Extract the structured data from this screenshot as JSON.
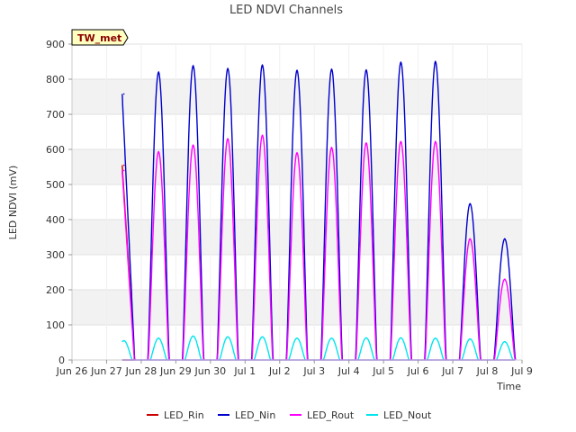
{
  "chart_data": {
    "type": "line",
    "title": "LED NDVI Channels",
    "xlabel": "Time",
    "ylabel": "LED NDVI (mV)",
    "ylim": [
      0,
      900
    ],
    "xlim": [
      "Jun 26",
      "Jul 9"
    ],
    "yticks": [
      0,
      100,
      200,
      300,
      400,
      500,
      600,
      700,
      800,
      900
    ],
    "xticks": [
      "Jun 26",
      "Jun 27",
      "Jun 28",
      "Jun 29",
      "Jun 30",
      "Jul 1",
      "Jul 2",
      "Jul 3",
      "Jul 4",
      "Jul 5",
      "Jul 6",
      "Jul 7",
      "Jul 8",
      "Jul 9"
    ],
    "grid": "horizontal alternating bands",
    "legend_position": "bottom",
    "annotation": "TW_met",
    "series": [
      {
        "name": "LED_Rin",
        "color": "#cc0000",
        "peaks": [
          {
            "date": "Jun 27",
            "value": 555
          }
        ]
      },
      {
        "name": "LED_Nin",
        "color": "#0000cc",
        "peaks": [
          {
            "date": "Jun 27",
            "value": 758
          },
          {
            "date": "Jun 28",
            "value": 820
          },
          {
            "date": "Jun 29",
            "value": 838
          },
          {
            "date": "Jun 30",
            "value": 830
          },
          {
            "date": "Jul 1",
            "value": 840
          },
          {
            "date": "Jul 2",
            "value": 825
          },
          {
            "date": "Jul 3",
            "value": 828
          },
          {
            "date": "Jul 4",
            "value": 826
          },
          {
            "date": "Jul 5",
            "value": 848
          },
          {
            "date": "Jul 6",
            "value": 850
          },
          {
            "date": "Jul 7",
            "value": 445
          },
          {
            "date": "Jul 8",
            "value": 345
          }
        ]
      },
      {
        "name": "LED_Rout",
        "color": "#ff00ff",
        "peaks": [
          {
            "date": "Jun 27",
            "value": 540
          },
          {
            "date": "Jun 28",
            "value": 593
          },
          {
            "date": "Jun 29",
            "value": 612
          },
          {
            "date": "Jun 30",
            "value": 630
          },
          {
            "date": "Jul 1",
            "value": 640
          },
          {
            "date": "Jul 2",
            "value": 590
          },
          {
            "date": "Jul 3",
            "value": 605
          },
          {
            "date": "Jul 4",
            "value": 618
          },
          {
            "date": "Jul 5",
            "value": 622
          },
          {
            "date": "Jul 6",
            "value": 622
          },
          {
            "date": "Jul 7",
            "value": 345
          },
          {
            "date": "Jul 8",
            "value": 230
          }
        ]
      },
      {
        "name": "LED_Nout",
        "color": "#00e5ee",
        "peaks": [
          {
            "date": "Jun 27",
            "value": 55
          },
          {
            "date": "Jun 28",
            "value": 62
          },
          {
            "date": "Jun 29",
            "value": 68
          },
          {
            "date": "Jun 30",
            "value": 66
          },
          {
            "date": "Jul 1",
            "value": 66
          },
          {
            "date": "Jul 2",
            "value": 62
          },
          {
            "date": "Jul 3",
            "value": 62
          },
          {
            "date": "Jul 4",
            "value": 63
          },
          {
            "date": "Jul 5",
            "value": 63
          },
          {
            "date": "Jul 6",
            "value": 62
          },
          {
            "date": "Jul 7",
            "value": 60
          },
          {
            "date": "Jul 8",
            "value": 52
          }
        ]
      }
    ]
  }
}
